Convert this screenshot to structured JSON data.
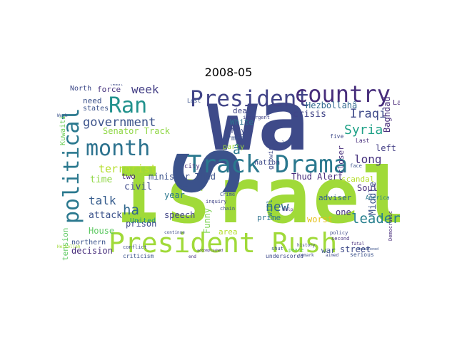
{
  "title": "2008-05",
  "words": [
    {
      "text": "Israel",
      "color": "#a0da39"
    },
    {
      "text": "wa",
      "color": "#3e4a89"
    },
    {
      "text": "S",
      "color": "#3b528b"
    },
    {
      "text": "President Rush",
      "color": "#a0da39"
    },
    {
      "text": "Track Drama",
      "color": "#2a788e"
    },
    {
      "text": "President",
      "color": "#414487"
    },
    {
      "text": "country",
      "color": "#472d7b"
    },
    {
      "text": "month",
      "color": "#2c728e"
    },
    {
      "text": "Ran",
      "color": "#21918c"
    },
    {
      "text": "political",
      "color": "#2a788e"
    },
    {
      "text": "government",
      "color": "#3b528b"
    },
    {
      "text": "terrorist",
      "color": "#b5de2b"
    },
    {
      "text": "Senator Track",
      "color": "#8fd744"
    },
    {
      "text": "week",
      "color": "#433e85"
    },
    {
      "text": "force",
      "color": "#46337e"
    },
    {
      "text": "need",
      "color": "#3b528b"
    },
    {
      "text": "Iraqi",
      "color": "#3e4a89"
    },
    {
      "text": "Syria",
      "color": "#1fa187"
    },
    {
      "text": "long",
      "color": "#46327e"
    },
    {
      "text": "Baghdad",
      "color": "#472d7b"
    },
    {
      "text": "Last",
      "color": "#482878"
    },
    {
      "text": "left",
      "color": "#433e85"
    },
    {
      "text": "leader",
      "color": "#277f8e"
    },
    {
      "text": "new",
      "color": "#31688e"
    },
    {
      "text": "Middle",
      "color": "#3b528b"
    },
    {
      "text": "Soul",
      "color": "#472c7a"
    },
    {
      "text": "talk",
      "color": "#365c8d"
    },
    {
      "text": "ha",
      "color": "#31688e"
    },
    {
      "text": "time",
      "color": "#8fd744"
    },
    {
      "text": "crisis",
      "color": "#414487"
    },
    {
      "text": "Hezbollahâ",
      "color": "#31688e"
    },
    {
      "text": "White",
      "color": "#2c728e"
    },
    {
      "text": "May",
      "color": "#3e4a89"
    },
    {
      "text": "nation",
      "color": "#3e4a89"
    },
    {
      "text": "minister Thud",
      "color": "#3b528b"
    },
    {
      "text": "Thud Alert",
      "color": "#472d7b"
    },
    {
      "text": "two",
      "color": "#482878"
    },
    {
      "text": "House",
      "color": "#5ec962"
    },
    {
      "text": "attack",
      "color": "#3b528b"
    },
    {
      "text": "civil",
      "color": "#3e4a89"
    },
    {
      "text": "year",
      "color": "#2a788e"
    },
    {
      "text": "United",
      "color": "#1f988b"
    },
    {
      "text": "prison",
      "color": "#3e4a89"
    },
    {
      "text": "decision",
      "color": "#472d7b"
    },
    {
      "text": "northern",
      "color": "#3b528b"
    },
    {
      "text": "speech",
      "color": "#414487"
    },
    {
      "text": "Funny",
      "color": "#7ad151"
    },
    {
      "text": "prime",
      "color": "#2c728e"
    },
    {
      "text": "worst",
      "color": "#fde725"
    },
    {
      "text": "adviser",
      "color": "#355f8d"
    },
    {
      "text": "one",
      "color": "#46327e"
    },
    {
      "text": "war",
      "color": "#3b528b"
    },
    {
      "text": "street",
      "color": "#3e4a89"
    },
    {
      "text": "scandal",
      "color": "#b5de2b"
    },
    {
      "text": "tension",
      "color": "#5ec962"
    },
    {
      "text": "Kuwaiti",
      "color": "#6ece58"
    },
    {
      "text": "states",
      "color": "#3b528b"
    },
    {
      "text": "North",
      "color": "#3e4a89"
    },
    {
      "text": "suicide",
      "color": "#472d7b"
    },
    {
      "text": "violence",
      "color": "#31688e"
    },
    {
      "text": "deal",
      "color": "#414487"
    },
    {
      "text": "armed",
      "color": "#3b528b"
    },
    {
      "text": "party",
      "color": "#a0da39"
    },
    {
      "text": "growing",
      "color": "#3e4a89"
    },
    {
      "text": "closer",
      "color": "#472d7b"
    },
    {
      "text": "will",
      "color": "#2a788e"
    },
    {
      "text": "Last",
      "color": "#3b528b"
    },
    {
      "text": "city",
      "color": "#46327e"
    },
    {
      "text": "five",
      "color": "#3e4a89"
    },
    {
      "text": "insurgent",
      "color": "#414487"
    },
    {
      "text": "area",
      "color": "#b5de2b"
    },
    {
      "text": "criticism",
      "color": "#3b528b"
    },
    {
      "text": "underscored",
      "color": "#3e4a89"
    },
    {
      "text": "second",
      "color": "#46327e"
    },
    {
      "text": "serious",
      "color": "#3b528b"
    },
    {
      "text": "peace",
      "color": "#5ec962"
    },
    {
      "text": "policy",
      "color": "#3e4a89"
    },
    {
      "text": "Democratic",
      "color": "#472d7b"
    },
    {
      "text": "face",
      "color": "#3b528b"
    },
    {
      "text": "aimed",
      "color": "#3e4a89"
    },
    {
      "text": "America",
      "color": "#2a788e"
    },
    {
      "text": "inquiry",
      "color": "#414487"
    },
    {
      "text": "Crime",
      "color": "#3b528b"
    },
    {
      "text": "chain",
      "color": "#3e4a89"
    },
    {
      "text": "help",
      "color": "#472d7b"
    },
    {
      "text": "shut",
      "color": "#3b528b"
    },
    {
      "text": "end",
      "color": "#46327e"
    },
    {
      "text": "conflict",
      "color": "#3e4a89"
    },
    {
      "text": "Work",
      "color": "#3b528b"
    },
    {
      "text": "fatal",
      "color": "#472d7b"
    },
    {
      "text": "least",
      "color": "#3e4a89"
    },
    {
      "text": "John",
      "color": "#3b528b"
    },
    {
      "text": "Hezbollah",
      "color": "#a0da39"
    },
    {
      "text": "continue",
      "color": "#3e4a89"
    },
    {
      "text": "accomplished",
      "color": "#46327e"
    },
    {
      "text": "threatened",
      "color": "#3b528b"
    },
    {
      "text": "history",
      "color": "#414487"
    },
    {
      "text": "remark",
      "color": "#3e4a89"
    },
    {
      "text": "Fore",
      "color": "#3b528b"
    },
    {
      "text": "Last",
      "color": "#472d7b"
    },
    {
      "text": "â",
      "color": "#2a788e"
    }
  ]
}
